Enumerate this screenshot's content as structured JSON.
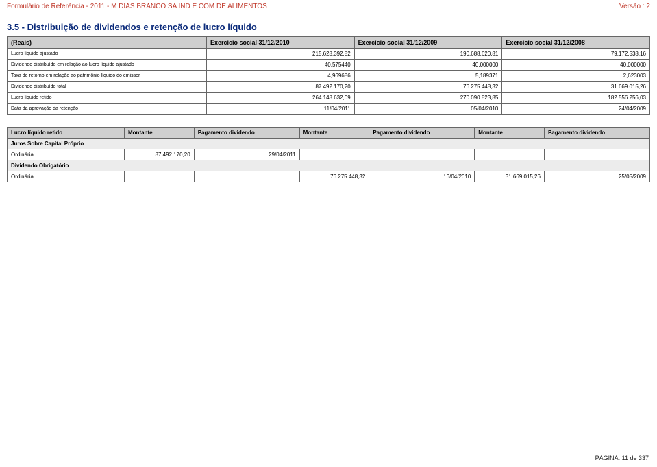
{
  "header": {
    "left": "Formulário de Referência - 2011 - M DIAS BRANCO SA IND E COM DE ALIMENTOS",
    "right": "Versão : 2"
  },
  "section_title": "3.5 - Distribuição de dividendos e retenção de lucro líquido",
  "main_table": {
    "headers": [
      "(Reais)",
      "Exercício social 31/12/2010",
      "Exercício social 31/12/2009",
      "Exercício social 31/12/2008"
    ],
    "rows": [
      {
        "label": "Lucro líquido ajustado",
        "v1": "215.628.392,82",
        "v2": "190.688.620,81",
        "v3": "79.172.538,16"
      },
      {
        "label": "Dividendo distribuído em relação ao lucro líquido ajustado",
        "v1": "40,575440",
        "v2": "40,000000",
        "v3": "40,000000"
      },
      {
        "label": "Taxa de retorno em relação ao patrimônio líquido do emissor",
        "v1": "4,969686",
        "v2": "5,189371",
        "v3": "2,623003"
      },
      {
        "label": "Dividendo distribuído total",
        "v1": "87.492.170,20",
        "v2": "76.275.448,32",
        "v3": "31.669.015,26"
      },
      {
        "label": "Lucro líquido retido",
        "v1": "264.148.632,09",
        "v2": "270.090.823,85",
        "v3": "182.556.256,03"
      },
      {
        "label": "Data da aprovação da retenção",
        "v1": "11/04/2011",
        "v2": "05/04/2010",
        "v3": "24/04/2009"
      }
    ]
  },
  "sub_table": {
    "headers": [
      "Lucro líquido retido",
      "Montante",
      "Pagamento dividendo",
      "Montante",
      "Pagamento dividendo",
      "Montante",
      "Pagamento dividendo"
    ],
    "groups": [
      {
        "title": "Juros Sobre Capital Próprio",
        "rows": [
          {
            "label": "Ordinária",
            "m1": "87.492.170,20",
            "d1": "29/04/2011",
            "m2": "",
            "d2": "",
            "m3": "",
            "d3": ""
          }
        ]
      },
      {
        "title": "Dividendo Obrigatório",
        "rows": [
          {
            "label": "Ordinária",
            "m1": "",
            "d1": "",
            "m2": "76.275.448,32",
            "d2": "16/04/2010",
            "m3": "31.669.015,26",
            "d3": "25/05/2009"
          }
        ]
      }
    ]
  },
  "footer": "PÁGINA: 11 de 337"
}
